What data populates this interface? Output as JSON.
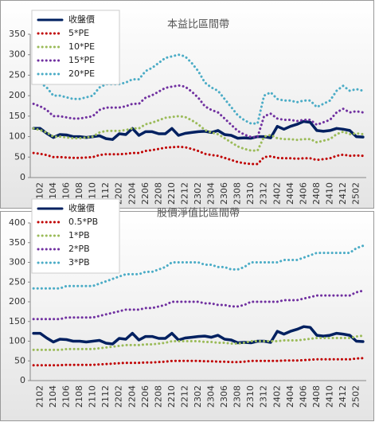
{
  "chart_data": [
    {
      "type": "line",
      "title": "本益比區間帶",
      "legend": "upper left",
      "categories": [
        null,
        "2102",
        null,
        "2104",
        null,
        "2106",
        null,
        "2108",
        null,
        "2110",
        null,
        "2112",
        null,
        "2202",
        null,
        "2204",
        null,
        "2206",
        null,
        "2208",
        null,
        "2210",
        null,
        "2212",
        null,
        "2302",
        null,
        "2304",
        null,
        "2306",
        null,
        "2308",
        null,
        "2310",
        null,
        "2312",
        null,
        "2402",
        null,
        "2404",
        null,
        "2406",
        null,
        "2408",
        null,
        "2410",
        null,
        "2412",
        null,
        "2502",
        null
      ],
      "ylim": [
        0,
        350
      ],
      "yticks": [
        0,
        50,
        100,
        150,
        200,
        250,
        300,
        350
      ],
      "series": [
        {
          "name": "收盤價",
          "color": "#002060",
          "style": "solid",
          "values": [
            120,
            120,
            108,
            98,
            105,
            104,
            100,
            100,
            98,
            100,
            102,
            95,
            93,
            107,
            105,
            120,
            103,
            112,
            112,
            107,
            107,
            120,
            103,
            108,
            110,
            112,
            113,
            110,
            115,
            105,
            103,
            96,
            97,
            96,
            100,
            100,
            97,
            125,
            118,
            125,
            130,
            137,
            135,
            115,
            113,
            115,
            120,
            118,
            115,
            100,
            99
          ]
        },
        {
          "name": "5*PE",
          "color": "#c00000",
          "style": "dotted",
          "values": [
            60,
            58,
            55,
            50,
            50,
            49,
            48,
            48,
            49,
            50,
            55,
            57,
            57,
            57,
            58,
            60,
            60,
            65,
            67,
            70,
            73,
            74,
            75,
            74,
            70,
            65,
            58,
            55,
            53,
            48,
            43,
            38,
            35,
            33,
            33,
            50,
            52,
            48,
            47,
            47,
            46,
            47,
            47,
            43,
            45,
            47,
            53,
            56,
            53,
            54,
            53
          ]
        },
        {
          "name": "10*PE",
          "color": "#9bbb59",
          "style": "dotted",
          "values": [
            120,
            116,
            110,
            100,
            100,
            98,
            96,
            96,
            98,
            100,
            110,
            114,
            114,
            114,
            116,
            120,
            120,
            130,
            134,
            140,
            146,
            148,
            150,
            148,
            140,
            130,
            116,
            110,
            106,
            96,
            86,
            76,
            70,
            66,
            66,
            100,
            104,
            96,
            94,
            94,
            92,
            94,
            94,
            86,
            90,
            94,
            106,
            112,
            106,
            108,
            106
          ]
        },
        {
          "name": "15*PE",
          "color": "#7030a0",
          "style": "dotted",
          "values": [
            180,
            174,
            165,
            150,
            150,
            147,
            144,
            144,
            147,
            150,
            165,
            171,
            171,
            171,
            174,
            180,
            180,
            195,
            201,
            210,
            219,
            222,
            225,
            222,
            210,
            195,
            174,
            165,
            159,
            144,
            129,
            114,
            105,
            99,
            99,
            150,
            156,
            144,
            141,
            141,
            138,
            141,
            141,
            129,
            135,
            141,
            159,
            168,
            159,
            162,
            159
          ]
        },
        {
          "name": "20*PE",
          "color": "#4bacc6",
          "style": "dotted",
          "values": [
            240,
            232,
            220,
            200,
            200,
            196,
            192,
            192,
            196,
            200,
            220,
            228,
            228,
            228,
            232,
            240,
            240,
            260,
            268,
            280,
            292,
            296,
            300,
            296,
            280,
            260,
            232,
            220,
            212,
            192,
            172,
            152,
            140,
            132,
            132,
            200,
            208,
            192,
            188,
            188,
            184,
            188,
            188,
            172,
            180,
            188,
            212,
            224,
            212,
            216,
            212
          ]
        }
      ]
    },
    {
      "type": "line",
      "title": "股價淨值比區間帶",
      "legend": "upper left",
      "categories": [
        null,
        "2102",
        null,
        "2104",
        null,
        "2106",
        null,
        "2108",
        null,
        "2110",
        null,
        "2112",
        null,
        "2202",
        null,
        "2204",
        null,
        "2206",
        null,
        "2208",
        null,
        "2210",
        null,
        "2212",
        null,
        "2302",
        null,
        "2304",
        null,
        "2306",
        null,
        "2308",
        null,
        "2310",
        null,
        "2312",
        null,
        "2402",
        null,
        "2404",
        null,
        "2406",
        null,
        "2408",
        null,
        "2410",
        null,
        "2412",
        null,
        "2502",
        null
      ],
      "ylim": [
        0,
        400
      ],
      "yticks": [
        0,
        50,
        100,
        150,
        200,
        250,
        300,
        350,
        400
      ],
      "series": [
        {
          "name": "收盤價",
          "color": "#002060",
          "style": "solid",
          "values": [
            120,
            120,
            108,
            98,
            105,
            104,
            100,
            100,
            98,
            100,
            102,
            95,
            93,
            107,
            105,
            120,
            103,
            112,
            112,
            107,
            107,
            120,
            103,
            108,
            110,
            112,
            113,
            110,
            115,
            105,
            103,
            96,
            97,
            96,
            100,
            100,
            97,
            125,
            118,
            125,
            130,
            137,
            135,
            115,
            113,
            115,
            120,
            118,
            115,
            100,
            99
          ]
        },
        {
          "name": "0.5*PB",
          "color": "#c00000",
          "style": "dotted",
          "values": [
            39,
            39,
            39,
            39,
            39,
            40,
            40,
            40,
            40,
            40,
            41,
            42,
            43,
            44,
            45,
            45,
            45,
            46,
            46,
            47,
            48,
            50,
            50,
            50,
            50,
            50,
            49,
            49,
            48,
            48,
            47,
            47,
            48,
            50,
            50,
            50,
            50,
            50,
            51,
            51,
            51,
            52,
            53,
            54,
            54,
            54,
            54,
            54,
            54,
            56,
            57
          ]
        },
        {
          "name": "1*PB",
          "color": "#9bbb59",
          "style": "dotted",
          "values": [
            78,
            78,
            78,
            78,
            78,
            80,
            80,
            80,
            80,
            80,
            82,
            84,
            86,
            88,
            90,
            90,
            90,
            92,
            92,
            94,
            96,
            100,
            100,
            100,
            100,
            100,
            98,
            98,
            96,
            96,
            94,
            94,
            96,
            100,
            100,
            100,
            100,
            100,
            102,
            102,
            102,
            104,
            106,
            108,
            108,
            108,
            108,
            108,
            108,
            112,
            114
          ]
        },
        {
          "name": "2*PB",
          "color": "#7030a0",
          "style": "dotted",
          "values": [
            156,
            156,
            156,
            156,
            156,
            160,
            160,
            160,
            160,
            160,
            164,
            168,
            172,
            176,
            180,
            180,
            180,
            184,
            184,
            188,
            192,
            200,
            200,
            200,
            200,
            200,
            196,
            196,
            192,
            192,
            188,
            188,
            192,
            200,
            200,
            200,
            200,
            200,
            204,
            204,
            204,
            208,
            212,
            216,
            216,
            216,
            216,
            216,
            216,
            224,
            228
          ]
        },
        {
          "name": "3*PB",
          "color": "#4bacc6",
          "style": "dotted",
          "values": [
            234,
            234,
            234,
            234,
            234,
            240,
            240,
            240,
            240,
            240,
            246,
            252,
            258,
            264,
            270,
            270,
            270,
            276,
            276,
            282,
            288,
            300,
            300,
            300,
            300,
            300,
            294,
            294,
            288,
            288,
            282,
            282,
            288,
            300,
            300,
            300,
            300,
            300,
            306,
            306,
            306,
            312,
            318,
            324,
            324,
            324,
            324,
            324,
            324,
            336,
            342
          ]
        }
      ]
    }
  ]
}
